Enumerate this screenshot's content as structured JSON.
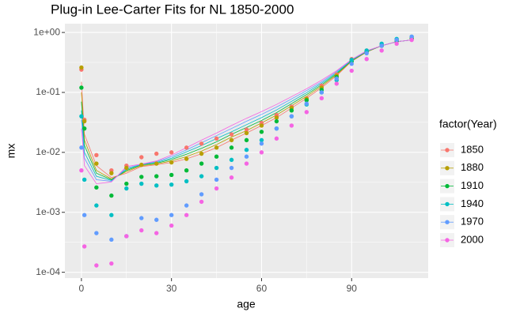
{
  "chart_data": {
    "type": "scatter",
    "title": "Plug-in Lee-Carter Fits for NL 1850-2000",
    "x_label": "age",
    "y_label": "mx",
    "legend_title": "factor(Year)",
    "log_y": true,
    "grid": true,
    "xlim": [
      -5.5,
      115.5
    ],
    "ylim": [
      8e-05,
      1.4
    ],
    "xticks": [
      0,
      30,
      60,
      90
    ],
    "yticks": [
      {
        "value": 0.0001,
        "label": "1e-04"
      },
      {
        "value": 0.001,
        "label": "1e-03"
      },
      {
        "value": 0.01,
        "label": "1e-02"
      },
      {
        "value": 0.1,
        "label": "1e-01"
      },
      {
        "value": 1,
        "label": "1e+00"
      }
    ],
    "x": [
      0,
      1,
      5,
      10,
      15,
      20,
      25,
      30,
      35,
      40,
      45,
      50,
      55,
      60,
      65,
      70,
      75,
      80,
      85,
      90,
      95,
      100,
      105,
      110
    ],
    "series": [
      {
        "name": "1850",
        "color": "#F8766D",
        "values": [
          0.24,
          0.035,
          0.009,
          0.005,
          0.006,
          0.0083,
          0.0095,
          0.01,
          0.012,
          0.014,
          0.017,
          0.02,
          0.024,
          0.031,
          0.042,
          0.058,
          0.08,
          0.13,
          0.2,
          0.36,
          0.5,
          0.62,
          0.76,
          0.83
        ],
        "fitted": [
          0.15,
          0.02,
          0.006,
          0.0038,
          0.0045,
          0.0058,
          0.0062,
          0.0068,
          0.0078,
          0.0095,
          0.012,
          0.016,
          0.021,
          0.028,
          0.038,
          0.055,
          0.08,
          0.12,
          0.19,
          0.33,
          0.47,
          0.6,
          0.7,
          0.75
        ]
      },
      {
        "name": "1880",
        "color": "#B79F00",
        "values": [
          0.26,
          0.033,
          0.0065,
          0.0045,
          0.0055,
          0.0062,
          0.0065,
          0.0068,
          0.0078,
          0.0095,
          0.012,
          0.016,
          0.021,
          0.028,
          0.038,
          0.055,
          0.078,
          0.12,
          0.19,
          0.33,
          0.48,
          0.6,
          0.74,
          0.8
        ],
        "fitted": [
          0.1,
          0.016,
          0.005,
          0.0036,
          0.0048,
          0.006,
          0.0064,
          0.0072,
          0.0085,
          0.0105,
          0.0135,
          0.018,
          0.023,
          0.031,
          0.042,
          0.06,
          0.086,
          0.127,
          0.197,
          0.335,
          0.475,
          0.6,
          0.7,
          0.75
        ]
      },
      {
        "name": "1910",
        "color": "#00BA38",
        "values": [
          0.12,
          0.025,
          0.0026,
          0.0019,
          0.003,
          0.0039,
          0.004,
          0.0042,
          0.005,
          0.0065,
          0.0085,
          0.012,
          0.016,
          0.022,
          0.033,
          0.05,
          0.074,
          0.11,
          0.18,
          0.33,
          0.48,
          0.6,
          0.72,
          0.78
        ],
        "fitted": [
          0.07,
          0.013,
          0.0045,
          0.0035,
          0.005,
          0.0062,
          0.0066,
          0.0076,
          0.0093,
          0.0117,
          0.015,
          0.02,
          0.026,
          0.034,
          0.046,
          0.065,
          0.092,
          0.134,
          0.205,
          0.34,
          0.48,
          0.6,
          0.7,
          0.75
        ]
      },
      {
        "name": "1940",
        "color": "#00BFC4",
        "values": [
          0.04,
          0.0035,
          0.0013,
          0.0009,
          0.0025,
          0.003,
          0.0028,
          0.0029,
          0.0033,
          0.004,
          0.0055,
          0.0075,
          0.011,
          0.016,
          0.025,
          0.04,
          0.063,
          0.1,
          0.16,
          0.35,
          0.5,
          0.65,
          0.78,
          0.85
        ],
        "fitted": [
          0.05,
          0.01,
          0.004,
          0.0034,
          0.0052,
          0.0063,
          0.0068,
          0.008,
          0.0102,
          0.013,
          0.017,
          0.022,
          0.029,
          0.038,
          0.051,
          0.071,
          0.099,
          0.142,
          0.213,
          0.345,
          0.485,
          0.6,
          0.7,
          0.75
        ]
      },
      {
        "name": "1970",
        "color": "#619CFF",
        "values": [
          0.012,
          0.0009,
          0.00045,
          0.00035,
          0.0004,
          0.0008,
          0.00075,
          0.0009,
          0.0013,
          0.002,
          0.0035,
          0.0055,
          0.0085,
          0.014,
          0.025,
          0.04,
          0.065,
          0.1,
          0.17,
          0.3,
          0.45,
          0.6,
          0.75,
          0.85
        ],
        "fitted": [
          0.035,
          0.008,
          0.0035,
          0.0033,
          0.0055,
          0.0063,
          0.007,
          0.0085,
          0.011,
          0.0145,
          0.019,
          0.025,
          0.033,
          0.043,
          0.057,
          0.078,
          0.107,
          0.15,
          0.222,
          0.35,
          0.49,
          0.6,
          0.7,
          0.75
        ]
      },
      {
        "name": "2000",
        "color": "#F564E3",
        "values": [
          0.005,
          0.00027,
          0.00013,
          0.00014,
          0.0004,
          0.0005,
          0.00045,
          0.0006,
          0.0009,
          0.0015,
          0.0025,
          0.0038,
          0.0065,
          0.01,
          0.017,
          0.028,
          0.047,
          0.08,
          0.14,
          0.23,
          0.36,
          0.5,
          0.65,
          0.75
        ],
        "fitted": [
          0.025,
          0.006,
          0.003,
          0.0032,
          0.0058,
          0.0064,
          0.0072,
          0.009,
          0.012,
          0.016,
          0.021,
          0.028,
          0.037,
          0.048,
          0.063,
          0.085,
          0.115,
          0.16,
          0.23,
          0.355,
          0.495,
          0.6,
          0.7,
          0.75
        ]
      }
    ]
  }
}
